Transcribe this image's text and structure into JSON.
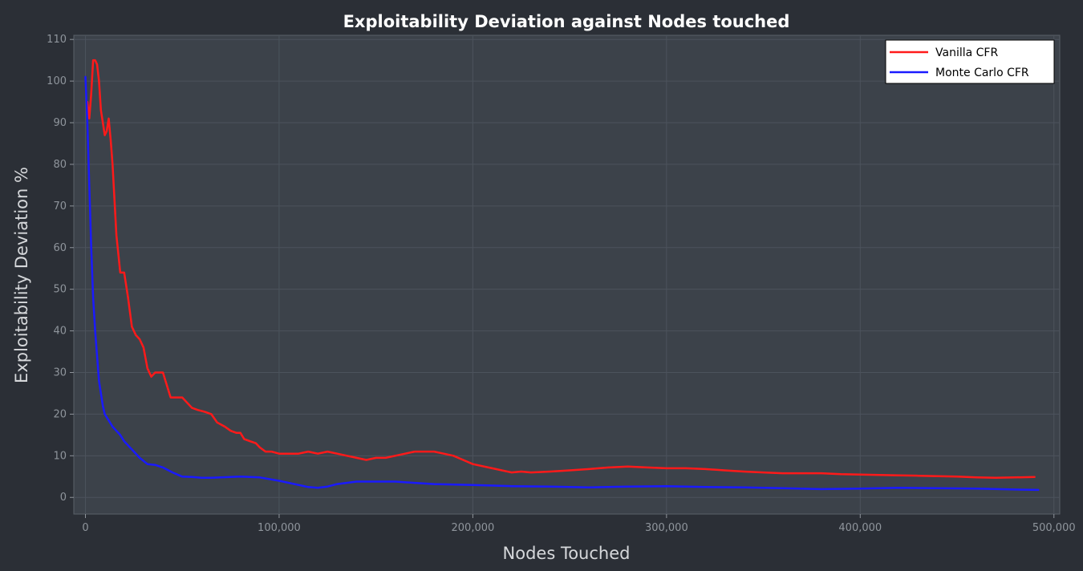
{
  "chart_data": {
    "type": "line",
    "title": "Exploitability Deviation against Nodes touched",
    "xlabel": "Nodes Touched",
    "ylabel": "Exploitability Deviation %",
    "xlim": [
      -6000,
      503000
    ],
    "ylim": [
      -4,
      111
    ],
    "xticks": [
      0,
      100000,
      200000,
      300000,
      400000,
      500000
    ],
    "xtick_labels": [
      "0",
      "100,000",
      "200,000",
      "300,000",
      "400,000",
      "500,000"
    ],
    "yticks": [
      0,
      10,
      20,
      30,
      40,
      50,
      60,
      70,
      80,
      90,
      100,
      110
    ],
    "ytick_labels": [
      "0",
      "10",
      "20",
      "30",
      "40",
      "50",
      "60",
      "70",
      "80",
      "90",
      "100",
      "110"
    ],
    "grid": true,
    "legend_position": "top-right",
    "series": [
      {
        "name": "Vanilla CFR",
        "color": "#ff1a1a",
        "x": [
          1000,
          2000,
          3000,
          4000,
          5000,
          6000,
          7000,
          8000,
          9000,
          10000,
          11000,
          12000,
          13000,
          14000,
          16000,
          18000,
          20000,
          22000,
          24000,
          26000,
          28000,
          30000,
          32000,
          34000,
          36000,
          40000,
          42000,
          44000,
          46000,
          50000,
          52000,
          55000,
          58000,
          62000,
          65000,
          68000,
          72000,
          75000,
          78000,
          80000,
          82000,
          85000,
          88000,
          90000,
          93000,
          96000,
          100000,
          105000,
          110000,
          115000,
          120000,
          125000,
          130000,
          135000,
          140000,
          145000,
          150000,
          155000,
          160000,
          165000,
          170000,
          175000,
          180000,
          185000,
          190000,
          195000,
          200000,
          210000,
          220000,
          225000,
          230000,
          240000,
          250000,
          260000,
          270000,
          280000,
          290000,
          300000,
          310000,
          320000,
          330000,
          340000,
          350000,
          360000,
          370000,
          380000,
          390000,
          400000,
          410000,
          420000,
          430000,
          440000,
          450000,
          460000,
          470000,
          480000,
          490000
        ],
        "values": [
          95,
          91,
          97,
          105,
          105,
          104,
          100,
          93,
          90,
          87,
          88,
          91,
          86,
          80,
          63,
          54,
          54,
          48,
          41,
          39,
          38,
          36,
          31,
          29,
          30,
          30,
          27,
          24,
          24,
          24,
          23,
          21.5,
          21,
          20.5,
          20,
          18,
          17,
          16,
          15.5,
          15.5,
          14,
          13.5,
          13,
          12,
          11,
          11,
          10.5,
          10.5,
          10.5,
          11,
          10.5,
          11,
          10.5,
          10,
          9.5,
          9,
          9.5,
          9.5,
          10,
          10.5,
          11,
          11,
          11,
          10.5,
          10,
          9,
          8,
          7,
          6,
          6.2,
          6,
          6.2,
          6.5,
          6.8,
          7.2,
          7.4,
          7.2,
          7,
          7,
          6.8,
          6.5,
          6.2,
          6,
          5.8,
          5.8,
          5.8,
          5.6,
          5.5,
          5.4,
          5.3,
          5.2,
          5.1,
          5,
          4.8,
          4.7,
          4.8,
          4.9
        ]
      },
      {
        "name": "Monte Carlo CFR",
        "color": "#1a1aff",
        "x": [
          0,
          1000,
          2000,
          3000,
          4000,
          5000,
          6000,
          7000,
          8000,
          9000,
          10000,
          12000,
          14000,
          16000,
          18000,
          20000,
          22000,
          25000,
          28000,
          32000,
          36000,
          40000,
          45000,
          50000,
          55000,
          60000,
          65000,
          70000,
          80000,
          90000,
          100000,
          110000,
          115000,
          120000,
          125000,
          130000,
          140000,
          150000,
          160000,
          170000,
          180000,
          200000,
          220000,
          240000,
          260000,
          280000,
          300000,
          320000,
          340000,
          360000,
          380000,
          400000,
          420000,
          440000,
          460000,
          480000,
          492000
        ],
        "values": [
          101,
          90,
          75,
          60,
          48,
          40,
          34,
          28,
          25,
          22,
          20,
          18.5,
          17,
          16,
          15,
          13.5,
          12.5,
          11,
          9.5,
          8,
          7.8,
          7.2,
          6,
          5,
          4.9,
          4.7,
          4.7,
          4.8,
          5,
          4.8,
          4,
          3,
          2.5,
          2.3,
          2.6,
          3.2,
          3.8,
          3.8,
          3.8,
          3.5,
          3.2,
          3,
          2.7,
          2.6,
          2.4,
          2.6,
          2.7,
          2.5,
          2.4,
          2.2,
          2,
          2.1,
          2.3,
          2.2,
          2.1,
          1.9,
          1.8
        ]
      }
    ]
  }
}
